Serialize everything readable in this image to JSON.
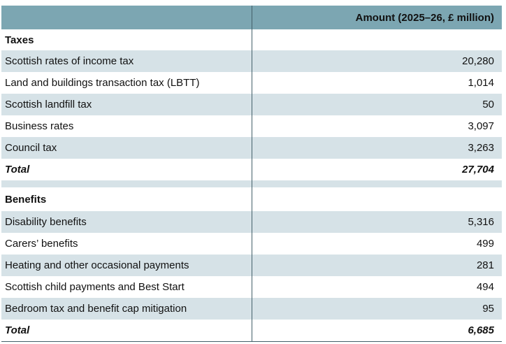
{
  "header": {
    "amount": "Amount (2025–26, £ million)"
  },
  "sections": [
    {
      "title": "Taxes",
      "rows": [
        [
          "Scottish rates of income tax",
          "20,280"
        ],
        [
          "Land and buildings transaction tax (LBTT)",
          "1,014"
        ],
        [
          "Scottish landfill tax",
          "50"
        ],
        [
          "Business rates",
          "3,097"
        ],
        [
          "Council tax",
          "3,263"
        ]
      ],
      "total": [
        "Total",
        "27,704"
      ]
    },
    {
      "title": "Benefits",
      "rows": [
        [
          "Disability benefits",
          "5,316"
        ],
        [
          "Carers’ benefits",
          "499"
        ],
        [
          "Heating and other occasional payments",
          "281"
        ],
        [
          "Scottish child payments and Best Start",
          "494"
        ],
        [
          "Bedroom tax and benefit cap mitigation",
          "95"
        ]
      ],
      "total": [
        "Total",
        "6,685"
      ]
    }
  ]
}
